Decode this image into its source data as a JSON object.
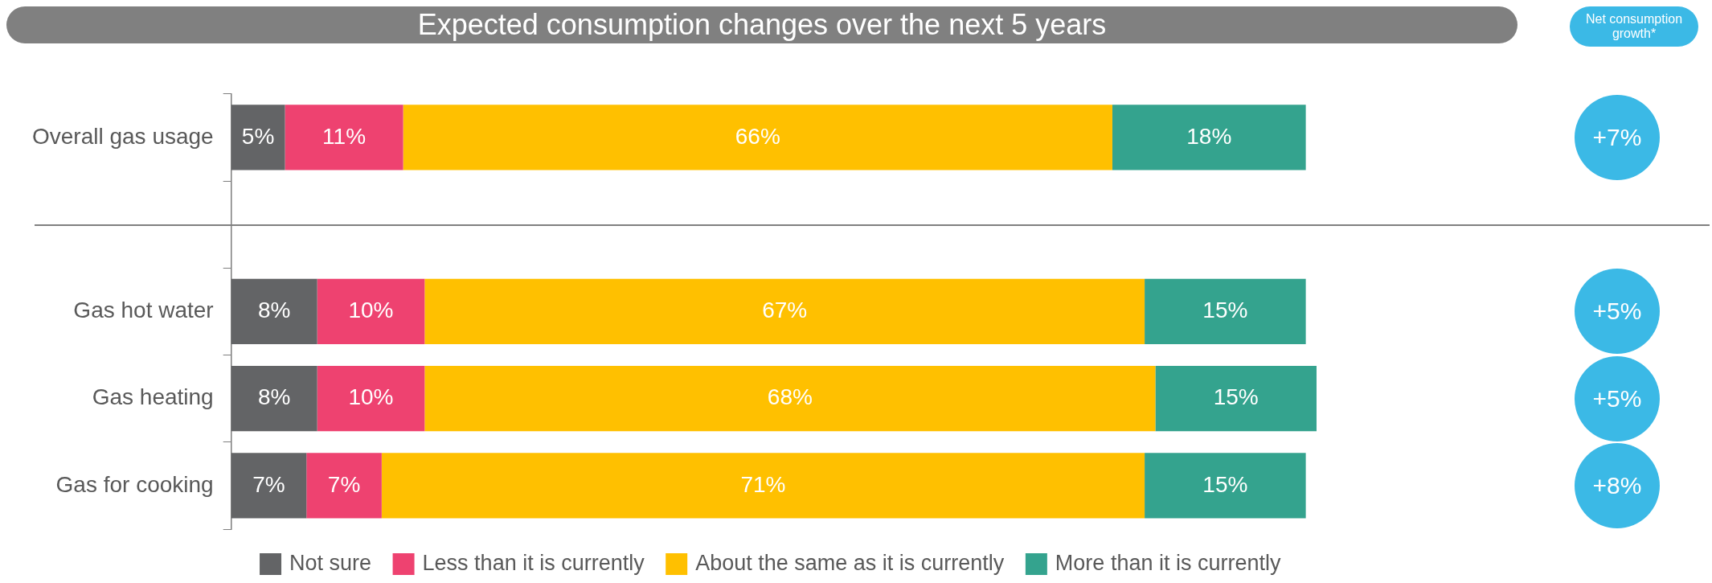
{
  "chart_data": {
    "type": "bar",
    "orientation": "horizontal",
    "stacked": true,
    "title": "Expected consumption changes over the next 5 years",
    "categories": [
      "Overall gas usage",
      null,
      "Gas hot water",
      "Gas heating",
      "Gas for cooking"
    ],
    "series": [
      {
        "name": "Not sure",
        "color": "#636466",
        "values": [
          5,
          null,
          8,
          8,
          7
        ],
        "value_labels": [
          "5%",
          null,
          "8%",
          "8%",
          "7%"
        ]
      },
      {
        "name": "Less than it is currently",
        "color": "#ee4270",
        "values": [
          11,
          null,
          10,
          10,
          7
        ],
        "value_labels": [
          "11%",
          null,
          "10%",
          "10%",
          "7%"
        ]
      },
      {
        "name": "About the same as it is currently",
        "color": "#ffc000",
        "values": [
          66,
          null,
          67,
          68,
          71
        ],
        "value_labels": [
          "66%",
          null,
          "67%",
          "68%",
          "71%"
        ]
      },
      {
        "name": "More than it is currently",
        "color": "#34a38e",
        "values": [
          18,
          null,
          15,
          15,
          15
        ],
        "value_labels": [
          "18%",
          null,
          "15%",
          "15%",
          "15%"
        ]
      }
    ],
    "legend": "bottom",
    "annotations": [
      "Net consumption growth*",
      "+7%",
      "+5%",
      "+5%",
      "+8%"
    ]
  }
}
